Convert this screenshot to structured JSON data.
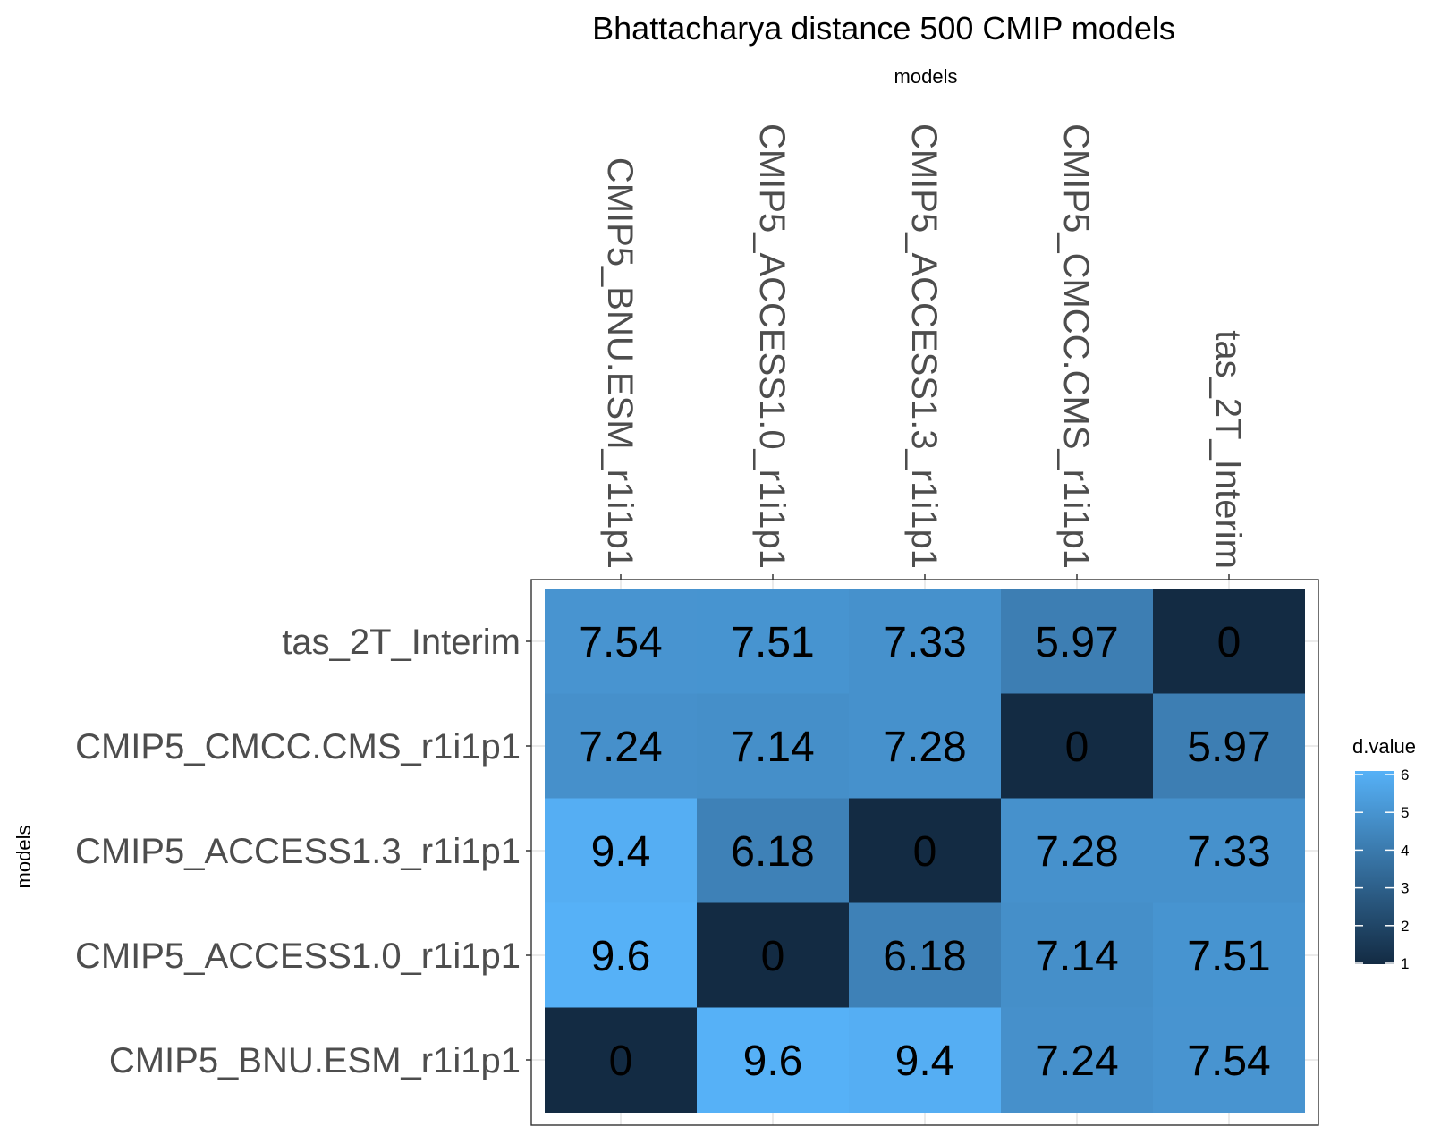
{
  "chart_data": {
    "type": "heatmap",
    "title": "Bhattacharya distance 500 CMIP models",
    "xlabel": "models",
    "ylabel": "models",
    "x_categories": [
      "CMIP5_BNU.ESM_r1i1p1",
      "CMIP5_ACCESS1.0_r1i1p1",
      "CMIP5_ACCESS1.3_r1i1p1",
      "CMIP5_CMCC.CMS_r1i1p1",
      "tas_2T_Interim"
    ],
    "y_categories": [
      "tas_2T_Interim",
      "CMIP5_CMCC.CMS_r1i1p1",
      "CMIP5_ACCESS1.3_r1i1p1",
      "CMIP5_ACCESS1.0_r1i1p1",
      "CMIP5_BNU.ESM_r1i1p1"
    ],
    "cells": [
      [
        7.54,
        7.51,
        7.33,
        5.97,
        0
      ],
      [
        7.24,
        7.14,
        7.28,
        0,
        5.97
      ],
      [
        9.4,
        6.18,
        0,
        7.28,
        7.33
      ],
      [
        9.6,
        0,
        6.18,
        7.14,
        7.51
      ],
      [
        0,
        9.6,
        9.4,
        7.24,
        7.54
      ]
    ],
    "cell_labels": [
      [
        "7.54",
        "7.51",
        "7.33",
        "5.97",
        "0"
      ],
      [
        "7.24",
        "7.14",
        "7.28",
        "0",
        "5.97"
      ],
      [
        "9.4",
        "6.18",
        "0",
        "7.28",
        "7.33"
      ],
      [
        "9.6",
        "0",
        "6.18",
        "7.14",
        "7.51"
      ],
      [
        "0",
        "9.6",
        "9.4",
        "7.24",
        "7.54"
      ]
    ],
    "legend": {
      "title": "d.value",
      "ticks": [
        "1",
        "2",
        "3",
        "4",
        "5",
        "6"
      ],
      "position": "right"
    },
    "color_low": "#132B43",
    "color_high": "#56B1F7",
    "grid": true,
    "x_axis_position": "top"
  }
}
